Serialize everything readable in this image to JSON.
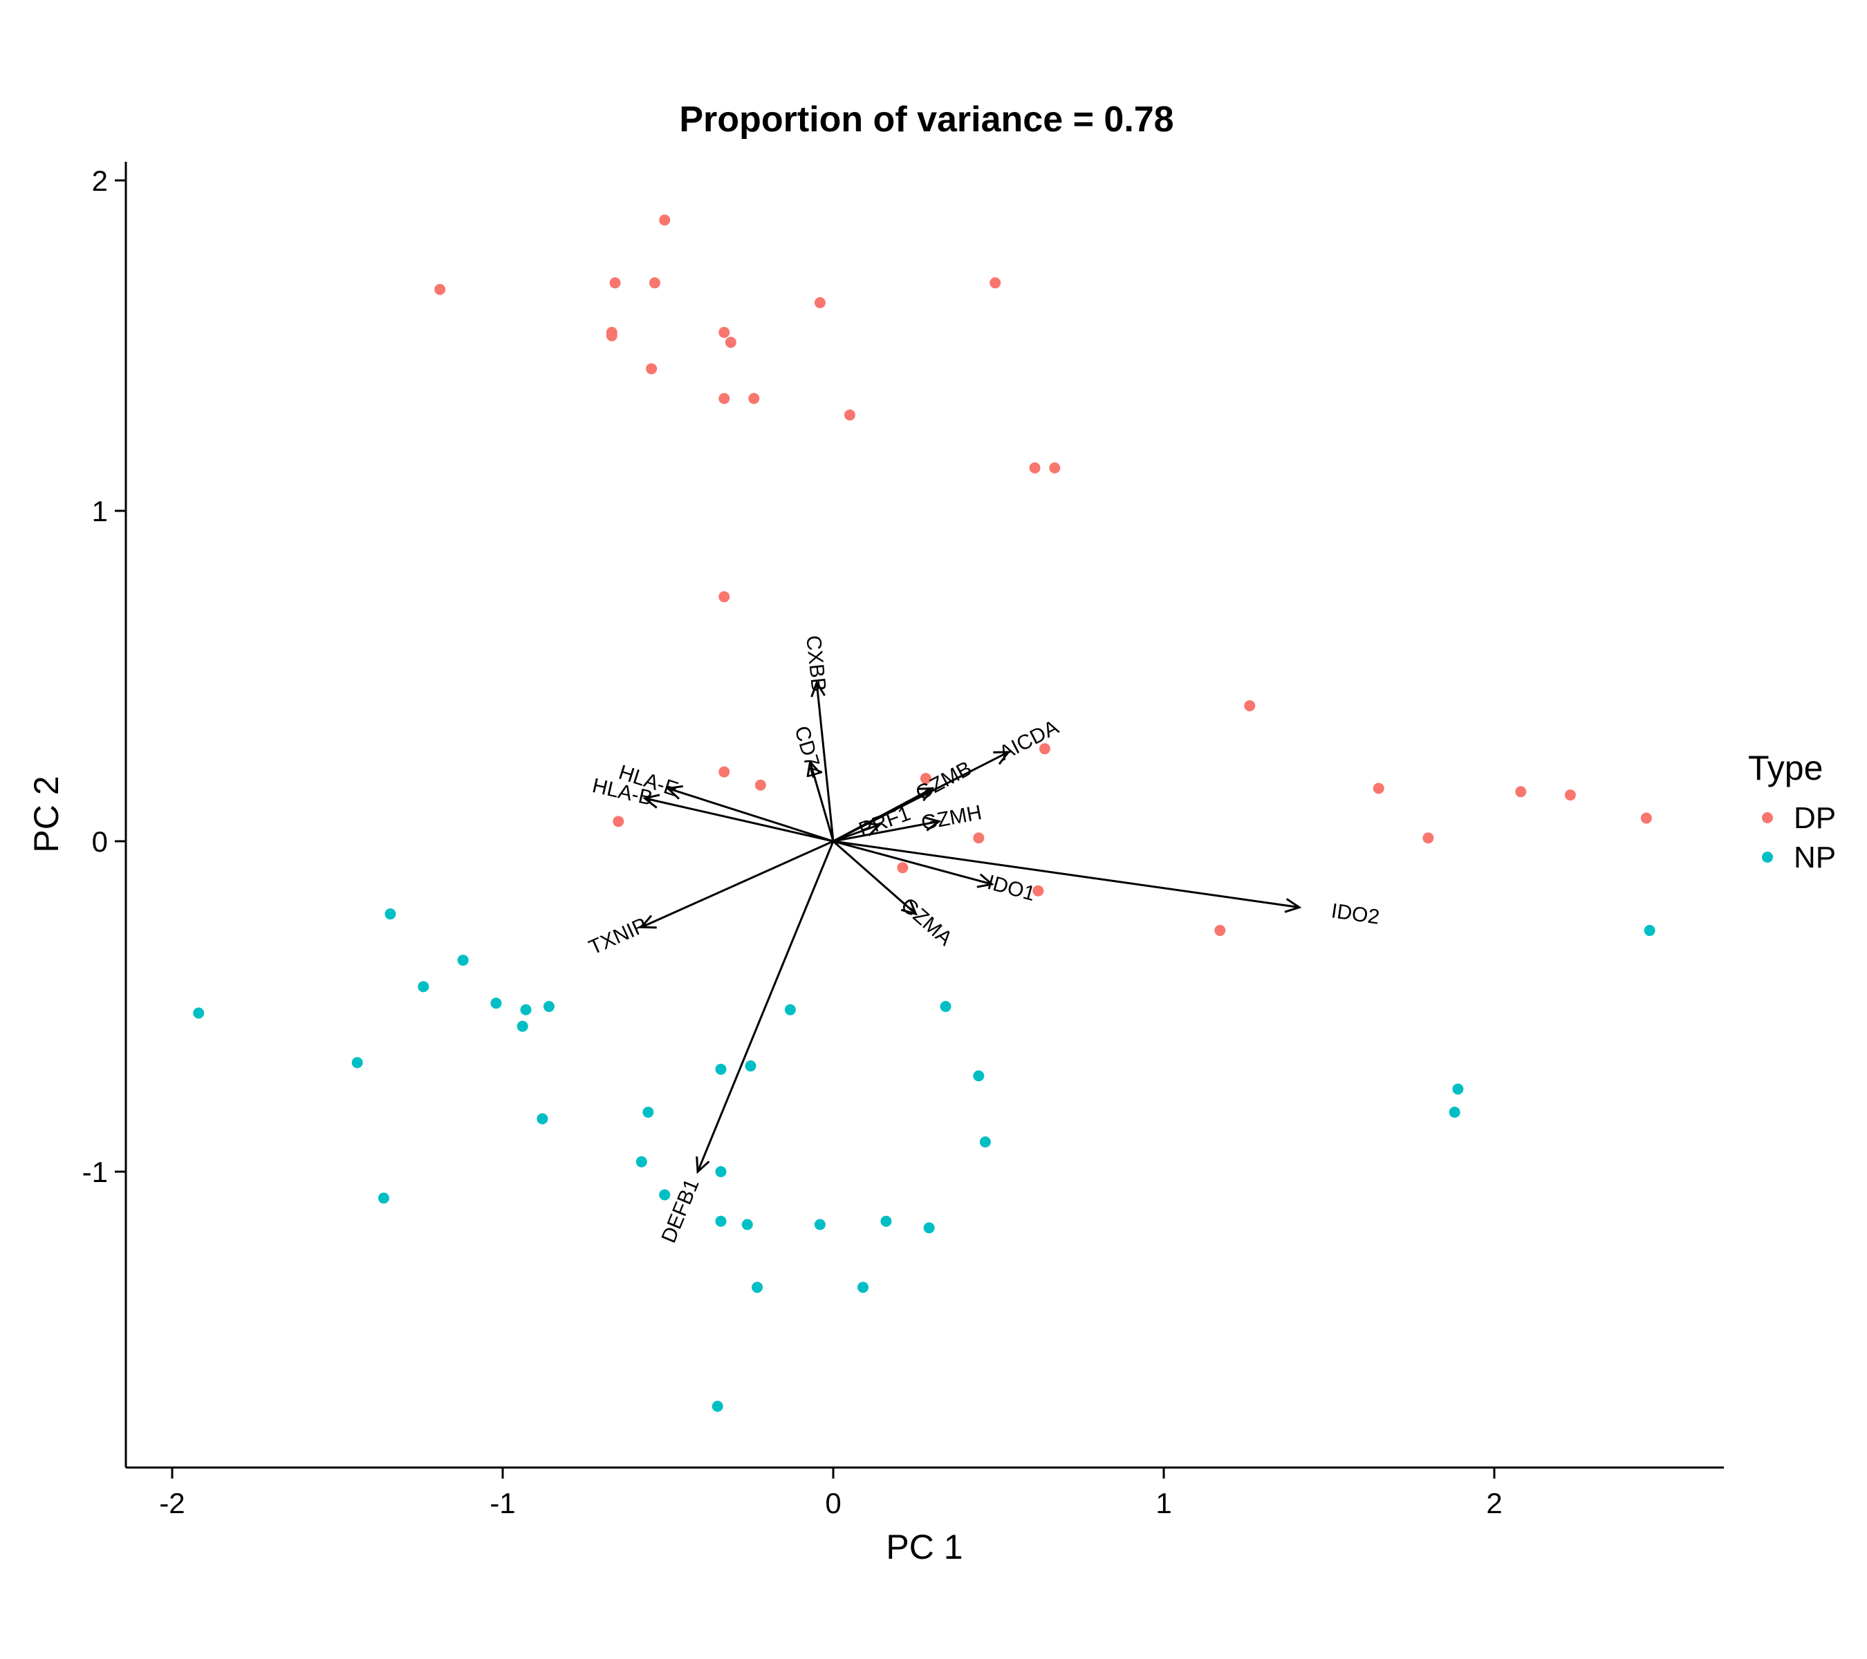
{
  "chart_data": {
    "type": "scatter",
    "title": "Proportion of variance = 0.78",
    "xlabel": "PC 1",
    "ylabel": "PC 2",
    "xlim": [
      -2.15,
      2.65
    ],
    "ylim": [
      -1.9,
      2.05
    ],
    "x_ticks": [
      -2,
      -1,
      0,
      1,
      2
    ],
    "y_ticks": [
      -1,
      0,
      1,
      2
    ],
    "grid": false,
    "legend": {
      "title": "Type",
      "placement": "right",
      "entries": [
        {
          "label": "DP",
          "color": "#F8766D"
        },
        {
          "label": "NP",
          "color": "#00BFC4"
        }
      ]
    },
    "series": [
      {
        "name": "DP",
        "color": "#F8766D",
        "points": [
          [
            -0.51,
            1.88
          ],
          [
            -1.19,
            1.67
          ],
          [
            -0.66,
            1.69
          ],
          [
            -0.54,
            1.69
          ],
          [
            -0.67,
            1.54
          ],
          [
            -0.67,
            1.53
          ],
          [
            -0.33,
            1.54
          ],
          [
            -0.31,
            1.51
          ],
          [
            -0.55,
            1.43
          ],
          [
            -0.33,
            1.34
          ],
          [
            -0.24,
            1.34
          ],
          [
            -0.04,
            1.63
          ],
          [
            0.05,
            1.29
          ],
          [
            0.49,
            1.69
          ],
          [
            0.61,
            1.13
          ],
          [
            0.67,
            1.13
          ],
          [
            -0.33,
            0.74
          ],
          [
            -0.33,
            0.21
          ],
          [
            -0.22,
            0.17
          ],
          [
            0.28,
            0.19
          ],
          [
            0.64,
            0.28
          ],
          [
            -0.65,
            0.06
          ],
          [
            0.44,
            0.01
          ],
          [
            0.21,
            -0.08
          ],
          [
            0.62,
            -0.15
          ],
          [
            1.26,
            0.41
          ],
          [
            1.65,
            0.16
          ],
          [
            1.8,
            0.01
          ],
          [
            2.08,
            0.15
          ],
          [
            2.23,
            0.14
          ],
          [
            2.46,
            0.07
          ],
          [
            1.17,
            -0.27
          ]
        ]
      },
      {
        "name": "NP",
        "color": "#00BFC4",
        "points": [
          [
            -1.92,
            -0.52
          ],
          [
            -1.34,
            -0.22
          ],
          [
            -1.12,
            -0.36
          ],
          [
            -1.24,
            -0.44
          ],
          [
            -1.02,
            -0.49
          ],
          [
            -0.93,
            -0.51
          ],
          [
            -0.86,
            -0.5
          ],
          [
            -0.94,
            -0.56
          ],
          [
            -1.44,
            -0.67
          ],
          [
            -0.88,
            -0.84
          ],
          [
            -1.36,
            -1.08
          ],
          [
            -0.13,
            -0.51
          ],
          [
            0.34,
            -0.5
          ],
          [
            -0.34,
            -0.69
          ],
          [
            -0.25,
            -0.68
          ],
          [
            0.44,
            -0.71
          ],
          [
            -0.56,
            -0.82
          ],
          [
            0.46,
            -0.91
          ],
          [
            -0.58,
            -0.97
          ],
          [
            -0.34,
            -1.0
          ],
          [
            -0.51,
            -1.07
          ],
          [
            -0.34,
            -1.15
          ],
          [
            -0.26,
            -1.16
          ],
          [
            -0.04,
            -1.16
          ],
          [
            0.16,
            -1.15
          ],
          [
            0.29,
            -1.17
          ],
          [
            -0.23,
            -1.35
          ],
          [
            0.09,
            -1.35
          ],
          [
            -0.35,
            -1.71
          ],
          [
            2.47,
            -0.27
          ],
          [
            1.89,
            -0.75
          ],
          [
            1.88,
            -0.82
          ]
        ]
      }
    ],
    "loadings": [
      {
        "name": "CXBB",
        "x": -0.05,
        "y": 0.48
      },
      {
        "name": "CD74",
        "x": -0.07,
        "y": 0.24
      },
      {
        "name": "AICDA",
        "x": 0.53,
        "y": 0.27
      },
      {
        "name": "GZMB",
        "x": 0.3,
        "y": 0.16
      },
      {
        "name": "PRF1",
        "x": 0.14,
        "y": 0.05
      },
      {
        "name": "GZMH",
        "x": 0.32,
        "y": 0.06
      },
      {
        "name": "IDO1",
        "x": 0.48,
        "y": -0.13
      },
      {
        "name": "IDO2",
        "x": 1.41,
        "y": -0.2
      },
      {
        "name": "GZMA",
        "x": 0.25,
        "y": -0.22
      },
      {
        "name": "DEFB1",
        "x": -0.41,
        "y": -1.0
      },
      {
        "name": "TXNIP",
        "x": -0.58,
        "y": -0.26
      },
      {
        "name": "HLA-E",
        "x": -0.5,
        "y": 0.16
      },
      {
        "name": "HLA-B",
        "x": -0.57,
        "y": 0.13
      }
    ]
  }
}
